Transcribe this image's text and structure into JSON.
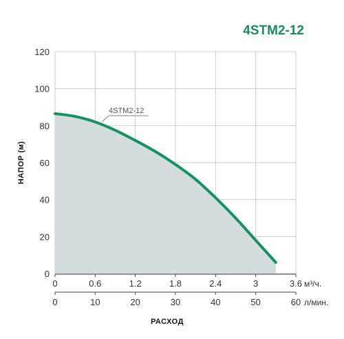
{
  "chart_data": {
    "type": "area",
    "title": "4STM2-12",
    "ylabel": "НАПОР (м)",
    "xlabel": "РАСХОД",
    "ylim": [
      0,
      120
    ],
    "y_ticks": [
      "0",
      "20",
      "40",
      "60",
      "80",
      "100",
      "120"
    ],
    "x_axis_primary": {
      "unit": "м³/ч.",
      "range": [
        0,
        3.6
      ],
      "ticks": [
        "0",
        "0.6",
        "1.2",
        "1.8",
        "2.4",
        "3",
        "3.6"
      ]
    },
    "x_axis_secondary": {
      "unit": "л/мин.",
      "range": [
        0,
        60
      ],
      "ticks": [
        "0",
        "10",
        "20",
        "30",
        "40",
        "50",
        "60"
      ]
    },
    "grid": true,
    "series": [
      {
        "name": "4STM2-12",
        "x": [
          0,
          0.3,
          0.6,
          0.9,
          1.2,
          1.5,
          1.8,
          2.1,
          2.4,
          2.7,
          3.0,
          3.3
        ],
        "y": [
          86.5,
          85,
          82,
          77.5,
          72,
          66,
          59,
          51,
          41,
          30,
          18,
          6
        ]
      }
    ]
  },
  "colors": {
    "curve": "#159060",
    "fill": "#d3dde0",
    "grid": "#cccccc",
    "title": "#1b8a5a"
  }
}
